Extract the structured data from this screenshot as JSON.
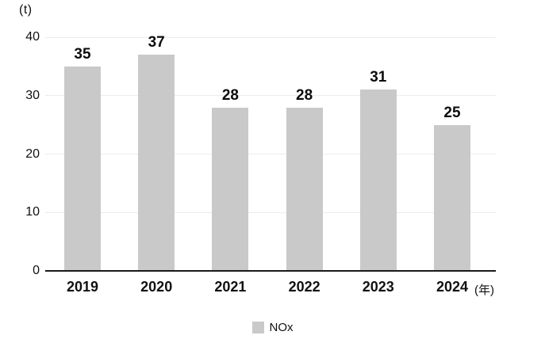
{
  "chart_data": {
    "type": "bar",
    "title": "",
    "unit_label": "(t)",
    "x_suffix": "(年)",
    "categories": [
      "2019",
      "2020",
      "2021",
      "2022",
      "2023",
      "2024"
    ],
    "series": [
      {
        "name": "NOx",
        "values": [
          35,
          37,
          28,
          28,
          31,
          25
        ]
      }
    ],
    "ylim": [
      0,
      40
    ],
    "yticks": [
      0,
      10,
      20,
      30,
      40
    ],
    "grid": "horizontal",
    "legend_position": "bottom-center",
    "colors": {
      "bar": "#c9c9c9",
      "gridline": "#ececec",
      "axis": "#1a1a1a",
      "text": "#111111"
    }
  }
}
